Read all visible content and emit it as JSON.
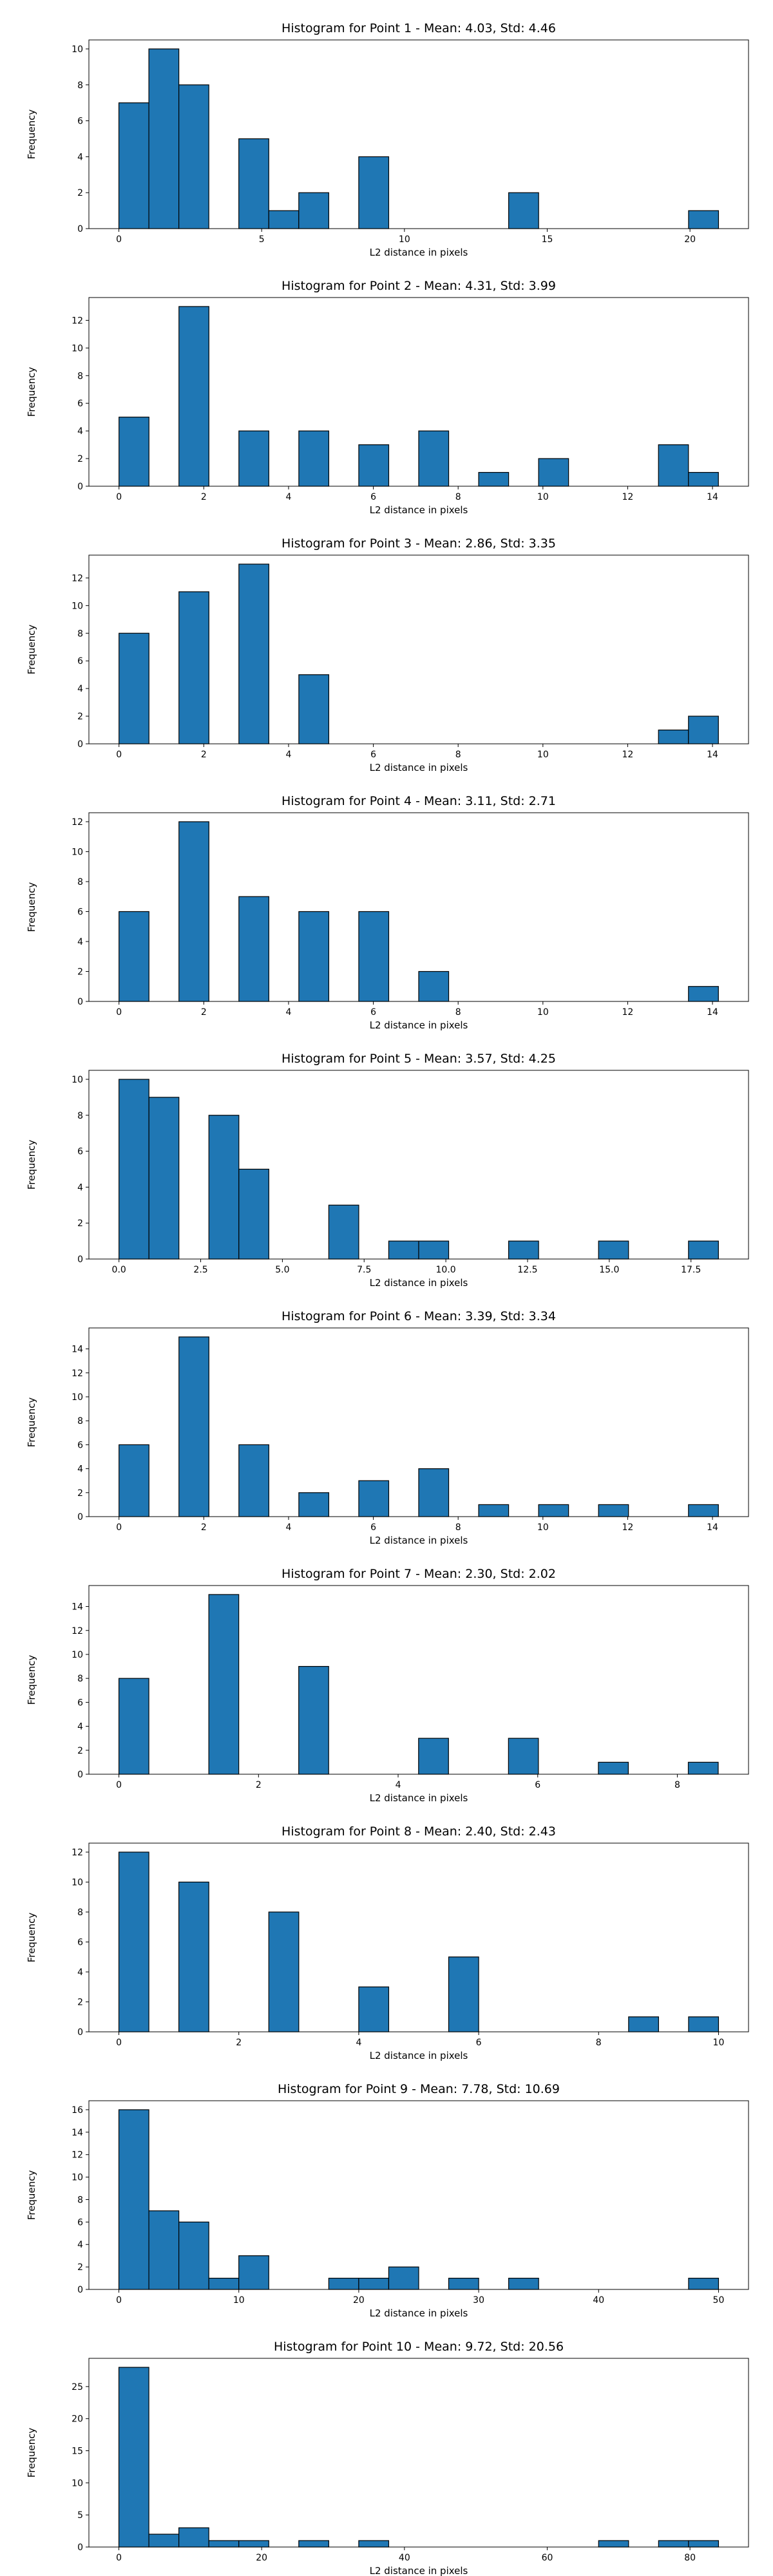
{
  "style": {
    "bar_color": "#1f77b4",
    "edge_color": "#000000",
    "background": "#ffffff"
  },
  "chart_data": [
    {
      "type": "bar",
      "title": "Histogram for Point 1 - Mean: 4.03, Std: 4.46",
      "xlabel": "L2 distance in pixels",
      "ylabel": "Frequency",
      "xlim": [
        -1.05,
        22.05
      ],
      "ylim": [
        0,
        10.5
      ],
      "xticks": [
        0,
        5,
        10,
        15,
        20
      ],
      "yticks": [
        0,
        2,
        4,
        6,
        8,
        10
      ],
      "bins": [
        {
          "x0": 0.0,
          "x1": 1.05,
          "value": 7
        },
        {
          "x0": 1.05,
          "x1": 2.1,
          "value": 10
        },
        {
          "x0": 2.1,
          "x1": 3.15,
          "value": 8
        },
        {
          "x0": 4.2,
          "x1": 5.25,
          "value": 5
        },
        {
          "x0": 5.25,
          "x1": 6.3,
          "value": 1
        },
        {
          "x0": 6.3,
          "x1": 7.35,
          "value": 2
        },
        {
          "x0": 8.4,
          "x1": 9.45,
          "value": 4
        },
        {
          "x0": 13.65,
          "x1": 14.7,
          "value": 2
        },
        {
          "x0": 19.95,
          "x1": 21.0,
          "value": 1
        }
      ]
    },
    {
      "type": "bar",
      "title": "Histogram for Point 2 - Mean: 4.31, Std: 3.99",
      "xlabel": "L2 distance in pixels",
      "ylabel": "Frequency",
      "xlim": [
        -0.71,
        14.85
      ],
      "ylim": [
        0,
        13.65
      ],
      "xticks": [
        0,
        2,
        4,
        6,
        8,
        10,
        12,
        14
      ],
      "yticks": [
        0,
        2,
        4,
        6,
        8,
        10,
        12
      ],
      "bins": [
        {
          "x0": 0.0,
          "x1": 0.707,
          "value": 5
        },
        {
          "x0": 1.414,
          "x1": 2.121,
          "value": 13
        },
        {
          "x0": 2.828,
          "x1": 3.535,
          "value": 4
        },
        {
          "x0": 4.242,
          "x1": 4.949,
          "value": 4
        },
        {
          "x0": 5.656,
          "x1": 6.363,
          "value": 3
        },
        {
          "x0": 7.07,
          "x1": 7.777,
          "value": 4
        },
        {
          "x0": 8.484,
          "x1": 9.191,
          "value": 1
        },
        {
          "x0": 9.898,
          "x1": 10.605,
          "value": 2
        },
        {
          "x0": 12.726,
          "x1": 13.433,
          "value": 3
        },
        {
          "x0": 13.433,
          "x1": 14.14,
          "value": 1
        }
      ]
    },
    {
      "type": "bar",
      "title": "Histogram for Point 3 - Mean: 2.86, Std: 3.35",
      "xlabel": "L2 distance in pixels",
      "ylabel": "Frequency",
      "xlim": [
        -0.71,
        14.85
      ],
      "ylim": [
        0,
        13.65
      ],
      "xticks": [
        0,
        2,
        4,
        6,
        8,
        10,
        12,
        14
      ],
      "yticks": [
        0,
        2,
        4,
        6,
        8,
        10,
        12
      ],
      "bins": [
        {
          "x0": 0.0,
          "x1": 0.707,
          "value": 8
        },
        {
          "x0": 1.414,
          "x1": 2.121,
          "value": 11
        },
        {
          "x0": 2.828,
          "x1": 3.535,
          "value": 13
        },
        {
          "x0": 4.242,
          "x1": 4.949,
          "value": 5
        },
        {
          "x0": 12.726,
          "x1": 13.433,
          "value": 1
        },
        {
          "x0": 13.433,
          "x1": 14.14,
          "value": 2
        }
      ]
    },
    {
      "type": "bar",
      "title": "Histogram for Point 4 - Mean: 3.11, Std: 2.71",
      "xlabel": "L2 distance in pixels",
      "ylabel": "Frequency",
      "xlim": [
        -0.71,
        14.85
      ],
      "ylim": [
        0,
        12.6
      ],
      "xticks": [
        0,
        2,
        4,
        6,
        8,
        10,
        12,
        14
      ],
      "yticks": [
        0,
        2,
        4,
        6,
        8,
        10,
        12
      ],
      "bins": [
        {
          "x0": 0.0,
          "x1": 0.707,
          "value": 6
        },
        {
          "x0": 1.414,
          "x1": 2.121,
          "value": 12
        },
        {
          "x0": 2.828,
          "x1": 3.535,
          "value": 7
        },
        {
          "x0": 4.242,
          "x1": 4.949,
          "value": 6
        },
        {
          "x0": 5.656,
          "x1": 6.363,
          "value": 6
        },
        {
          "x0": 7.07,
          "x1": 7.777,
          "value": 2
        },
        {
          "x0": 13.433,
          "x1": 14.14,
          "value": 1
        }
      ]
    },
    {
      "type": "bar",
      "title": "Histogram for Point 5 - Mean: 3.57, Std: 4.25",
      "xlabel": "L2 distance in pixels",
      "ylabel": "Frequency",
      "xlim": [
        -0.92,
        19.26
      ],
      "ylim": [
        0,
        10.5
      ],
      "xticks": [
        0.0,
        2.5,
        5.0,
        7.5,
        10.0,
        12.5,
        15.0,
        17.5
      ],
      "yticks": [
        0,
        2,
        4,
        6,
        8,
        10
      ],
      "xtick_labels": [
        "0.0",
        "2.5",
        "5.0",
        "7.5",
        "10.0",
        "12.5",
        "15.0",
        "17.5"
      ],
      "bins": [
        {
          "x0": 0.0,
          "x1": 0.917,
          "value": 10
        },
        {
          "x0": 0.917,
          "x1": 1.834,
          "value": 9
        },
        {
          "x0": 2.751,
          "x1": 3.668,
          "value": 8
        },
        {
          "x0": 3.668,
          "x1": 4.585,
          "value": 5
        },
        {
          "x0": 6.419,
          "x1": 7.336,
          "value": 3
        },
        {
          "x0": 8.253,
          "x1": 9.17,
          "value": 1
        },
        {
          "x0": 9.17,
          "x1": 10.087,
          "value": 1
        },
        {
          "x0": 11.921,
          "x1": 12.838,
          "value": 1
        },
        {
          "x0": 14.672,
          "x1": 15.589,
          "value": 1
        },
        {
          "x0": 17.423,
          "x1": 18.34,
          "value": 1
        }
      ]
    },
    {
      "type": "bar",
      "title": "Histogram for Point 6 - Mean: 3.39, Std: 3.34",
      "xlabel": "L2 distance in pixels",
      "ylabel": "Frequency",
      "xlim": [
        -0.71,
        14.85
      ],
      "ylim": [
        0,
        15.75
      ],
      "xticks": [
        0,
        2,
        4,
        6,
        8,
        10,
        12,
        14
      ],
      "yticks": [
        0,
        2,
        4,
        6,
        8,
        10,
        12,
        14
      ],
      "bins": [
        {
          "x0": 0.0,
          "x1": 0.707,
          "value": 6
        },
        {
          "x0": 1.414,
          "x1": 2.121,
          "value": 15
        },
        {
          "x0": 2.828,
          "x1": 3.535,
          "value": 6
        },
        {
          "x0": 4.242,
          "x1": 4.949,
          "value": 2
        },
        {
          "x0": 5.656,
          "x1": 6.363,
          "value": 3
        },
        {
          "x0": 7.07,
          "x1": 7.777,
          "value": 4
        },
        {
          "x0": 8.484,
          "x1": 9.191,
          "value": 1
        },
        {
          "x0": 9.898,
          "x1": 10.605,
          "value": 1
        },
        {
          "x0": 11.312,
          "x1": 12.019,
          "value": 1
        },
        {
          "x0": 13.433,
          "x1": 14.14,
          "value": 1
        }
      ]
    },
    {
      "type": "bar",
      "title": "Histogram for Point 7 - Mean: 2.30, Std: 2.02",
      "xlabel": "L2 distance in pixels",
      "ylabel": "Frequency",
      "xlim": [
        -0.43,
        9.02
      ],
      "ylim": [
        0,
        15.75
      ],
      "xticks": [
        0,
        2,
        4,
        6,
        8
      ],
      "yticks": [
        0,
        2,
        4,
        6,
        8,
        10,
        12,
        14
      ],
      "bins": [
        {
          "x0": 0.0,
          "x1": 0.429,
          "value": 8
        },
        {
          "x0": 1.288,
          "x1": 1.717,
          "value": 15
        },
        {
          "x0": 2.576,
          "x1": 3.005,
          "value": 9
        },
        {
          "x0": 4.293,
          "x1": 4.722,
          "value": 3
        },
        {
          "x0": 5.581,
          "x1": 6.01,
          "value": 3
        },
        {
          "x0": 6.869,
          "x1": 7.298,
          "value": 1
        },
        {
          "x0": 8.157,
          "x1": 8.586,
          "value": 1
        }
      ]
    },
    {
      "type": "bar",
      "title": "Histogram for Point 8 - Mean: 2.40, Std: 2.43",
      "xlabel": "L2 distance in pixels",
      "ylabel": "Frequency",
      "xlim": [
        -0.5,
        10.5
      ],
      "ylim": [
        0,
        12.6
      ],
      "xticks": [
        0,
        2,
        4,
        6,
        8,
        10
      ],
      "yticks": [
        0,
        2,
        4,
        6,
        8,
        10,
        12
      ],
      "bins": [
        {
          "x0": 0.0,
          "x1": 0.5,
          "value": 12
        },
        {
          "x0": 1.0,
          "x1": 1.5,
          "value": 10
        },
        {
          "x0": 2.5,
          "x1": 3.0,
          "value": 8
        },
        {
          "x0": 4.0,
          "x1": 4.5,
          "value": 3
        },
        {
          "x0": 5.5,
          "x1": 6.0,
          "value": 5
        },
        {
          "x0": 8.5,
          "x1": 9.0,
          "value": 1
        },
        {
          "x0": 9.5,
          "x1": 10.0,
          "value": 1
        }
      ]
    },
    {
      "type": "bar",
      "title": "Histogram for Point 9 - Mean: 7.78, Std: 10.69",
      "xlabel": "L2 distance in pixels",
      "ylabel": "Frequency",
      "xlim": [
        -2.5,
        52.5
      ],
      "ylim": [
        0,
        16.8
      ],
      "xticks": [
        0,
        10,
        20,
        30,
        40,
        50
      ],
      "yticks": [
        0,
        2,
        4,
        6,
        8,
        10,
        12,
        14,
        16
      ],
      "bins": [
        {
          "x0": 0.0,
          "x1": 2.5,
          "value": 16
        },
        {
          "x0": 2.5,
          "x1": 5.0,
          "value": 7
        },
        {
          "x0": 5.0,
          "x1": 7.5,
          "value": 6
        },
        {
          "x0": 7.5,
          "x1": 10.0,
          "value": 1
        },
        {
          "x0": 10.0,
          "x1": 12.5,
          "value": 3
        },
        {
          "x0": 17.5,
          "x1": 20.0,
          "value": 1
        },
        {
          "x0": 20.0,
          "x1": 22.5,
          "value": 1
        },
        {
          "x0": 22.5,
          "x1": 25.0,
          "value": 2
        },
        {
          "x0": 27.5,
          "x1": 30.0,
          "value": 1
        },
        {
          "x0": 32.5,
          "x1": 35.0,
          "value": 1
        },
        {
          "x0": 47.5,
          "x1": 50.0,
          "value": 1
        }
      ]
    },
    {
      "type": "bar",
      "title": "Histogram for Point 10 - Mean: 9.72, Std: 20.56",
      "xlabel": "L2 distance in pixels",
      "ylabel": "Frequency",
      "xlim": [
        -4.2,
        88.2
      ],
      "ylim": [
        0,
        29.4
      ],
      "xticks": [
        0,
        20,
        40,
        60,
        80
      ],
      "yticks": [
        0,
        5,
        10,
        15,
        20,
        25
      ],
      "bins": [
        {
          "x0": 0.0,
          "x1": 4.2,
          "value": 28
        },
        {
          "x0": 4.2,
          "x1": 8.4,
          "value": 2
        },
        {
          "x0": 8.4,
          "x1": 12.6,
          "value": 3
        },
        {
          "x0": 12.6,
          "x1": 16.8,
          "value": 1
        },
        {
          "x0": 16.8,
          "x1": 21.0,
          "value": 1
        },
        {
          "x0": 25.2,
          "x1": 29.4,
          "value": 1
        },
        {
          "x0": 33.6,
          "x1": 37.8,
          "value": 1
        },
        {
          "x0": 67.2,
          "x1": 71.4,
          "value": 1
        },
        {
          "x0": 75.6,
          "x1": 79.8,
          "value": 1
        },
        {
          "x0": 79.8,
          "x1": 84.0,
          "value": 1
        }
      ]
    }
  ]
}
